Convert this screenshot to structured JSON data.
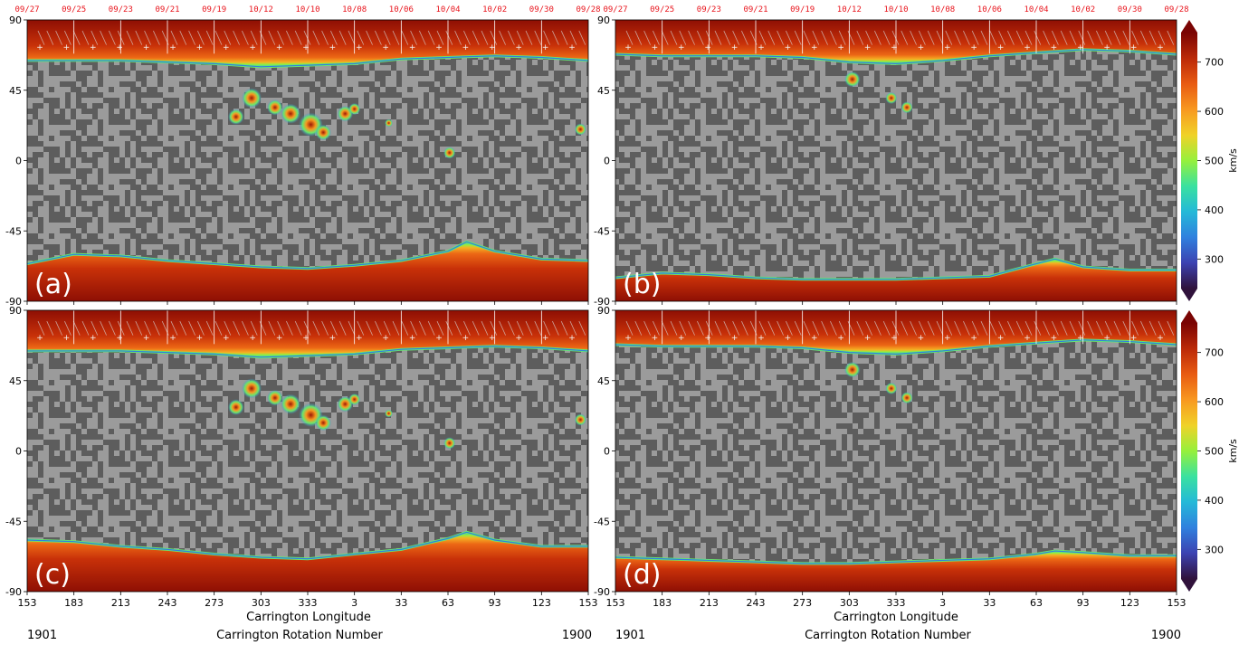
{
  "chart_data": {
    "type": "heatmap",
    "xlabel": "Carrington Longitude",
    "ylabel": "",
    "x_ticks": [
      "153",
      "183",
      "213",
      "243",
      "273",
      "303",
      "333",
      "3",
      "33",
      "63",
      "93",
      "123",
      "153"
    ],
    "y_ticks": [
      "90",
      "45",
      "0",
      "-45",
      "-90"
    ],
    "ylim": [
      -90,
      90
    ],
    "date_ticks": [
      "09/27",
      "09/25",
      "09/23",
      "09/21",
      "09/19",
      "10/12",
      "10/10",
      "10/08",
      "10/06",
      "10/04",
      "10/02",
      "09/30",
      "09/28"
    ],
    "rotation_label": "Carrington Rotation Number",
    "rotation_left": "1901",
    "rotation_right": "1900",
    "colorbar": {
      "label": "km/s",
      "ticks": [
        "300",
        "400",
        "500",
        "600",
        "700"
      ],
      "tick_values": [
        300,
        400,
        500,
        600,
        700
      ],
      "range": [
        240,
        760
      ]
    },
    "panels": [
      {
        "label": "(a)",
        "north_boundary": [
          [
            153,
            64
          ],
          [
            183,
            64
          ],
          [
            213,
            64
          ],
          [
            243,
            63
          ],
          [
            273,
            62
          ],
          [
            303,
            60
          ],
          [
            333,
            61
          ],
          [
            3,
            62
          ],
          [
            33,
            65
          ],
          [
            63,
            66
          ],
          [
            93,
            67
          ],
          [
            123,
            66
          ],
          [
            153,
            64
          ]
        ],
        "south_boundary": [
          [
            153,
            -66
          ],
          [
            183,
            -60
          ],
          [
            213,
            -61
          ],
          [
            243,
            -64
          ],
          [
            273,
            -66
          ],
          [
            303,
            -68
          ],
          [
            333,
            -69
          ],
          [
            3,
            -67
          ],
          [
            33,
            -64
          ],
          [
            63,
            -58
          ],
          [
            75,
            -52
          ],
          [
            93,
            -58
          ],
          [
            123,
            -63
          ],
          [
            153,
            -64
          ]
        ],
        "active_regions": [
          [
            287,
            28,
            4
          ],
          [
            297,
            40,
            5
          ],
          [
            312,
            34,
            4
          ],
          [
            322,
            30,
            5
          ],
          [
            335,
            23,
            6
          ],
          [
            343,
            18,
            4
          ],
          [
            357,
            30,
            4
          ],
          [
            3,
            33,
            3
          ],
          [
            25,
            24,
            2
          ],
          [
            64,
            5,
            3
          ],
          [
            148,
            20,
            3
          ]
        ]
      },
      {
        "label": "(b)",
        "north_boundary": [
          [
            153,
            68
          ],
          [
            183,
            67
          ],
          [
            213,
            67
          ],
          [
            243,
            67
          ],
          [
            273,
            66
          ],
          [
            303,
            63
          ],
          [
            333,
            62
          ],
          [
            3,
            64
          ],
          [
            33,
            67
          ],
          [
            63,
            69
          ],
          [
            93,
            71
          ],
          [
            123,
            70
          ],
          [
            153,
            68
          ]
        ],
        "south_boundary": [
          [
            153,
            -75
          ],
          [
            183,
            -72
          ],
          [
            213,
            -73
          ],
          [
            243,
            -75
          ],
          [
            273,
            -76
          ],
          [
            303,
            -76
          ],
          [
            333,
            -76
          ],
          [
            3,
            -75
          ],
          [
            33,
            -74
          ],
          [
            63,
            -66
          ],
          [
            75,
            -63
          ],
          [
            93,
            -68
          ],
          [
            123,
            -70
          ],
          [
            153,
            -70
          ]
        ],
        "active_regions": [
          [
            305,
            52,
            4
          ],
          [
            330,
            40,
            3
          ],
          [
            340,
            34,
            3
          ]
        ]
      },
      {
        "label": "(c)",
        "north_boundary": [
          [
            153,
            64
          ],
          [
            183,
            64
          ],
          [
            213,
            64
          ],
          [
            243,
            63
          ],
          [
            273,
            62
          ],
          [
            303,
            60
          ],
          [
            333,
            61
          ],
          [
            3,
            62
          ],
          [
            33,
            65
          ],
          [
            63,
            66
          ],
          [
            93,
            67
          ],
          [
            123,
            66
          ],
          [
            153,
            64
          ]
        ],
        "south_boundary": [
          [
            153,
            -57
          ],
          [
            183,
            -58
          ],
          [
            213,
            -61
          ],
          [
            243,
            -63
          ],
          [
            273,
            -66
          ],
          [
            303,
            -68
          ],
          [
            333,
            -69
          ],
          [
            3,
            -66
          ],
          [
            33,
            -63
          ],
          [
            63,
            -56
          ],
          [
            75,
            -52
          ],
          [
            93,
            -57
          ],
          [
            123,
            -61
          ],
          [
            153,
            -61
          ]
        ],
        "active_regions": [
          [
            287,
            28,
            4
          ],
          [
            297,
            40,
            5
          ],
          [
            312,
            34,
            4
          ],
          [
            322,
            30,
            5
          ],
          [
            335,
            23,
            6
          ],
          [
            343,
            18,
            4
          ],
          [
            357,
            30,
            4
          ],
          [
            3,
            33,
            3
          ],
          [
            25,
            24,
            2
          ],
          [
            64,
            5,
            3
          ],
          [
            148,
            20,
            3
          ]
        ]
      },
      {
        "label": "(d)",
        "north_boundary": [
          [
            153,
            68
          ],
          [
            183,
            67
          ],
          [
            213,
            67
          ],
          [
            243,
            67
          ],
          [
            273,
            66
          ],
          [
            303,
            63
          ],
          [
            333,
            62
          ],
          [
            3,
            64
          ],
          [
            33,
            67
          ],
          [
            63,
            69
          ],
          [
            93,
            71
          ],
          [
            123,
            70
          ],
          [
            153,
            68
          ]
        ],
        "south_boundary": [
          [
            153,
            -68
          ],
          [
            183,
            -69
          ],
          [
            213,
            -70
          ],
          [
            243,
            -71
          ],
          [
            273,
            -72
          ],
          [
            303,
            -72
          ],
          [
            333,
            -71
          ],
          [
            3,
            -70
          ],
          [
            33,
            -69
          ],
          [
            63,
            -66
          ],
          [
            75,
            -64
          ],
          [
            93,
            -65
          ],
          [
            123,
            -67
          ],
          [
            153,
            -67
          ]
        ],
        "active_regions": [
          [
            305,
            52,
            4
          ],
          [
            330,
            40,
            3
          ],
          [
            340,
            34,
            3
          ]
        ]
      }
    ]
  }
}
